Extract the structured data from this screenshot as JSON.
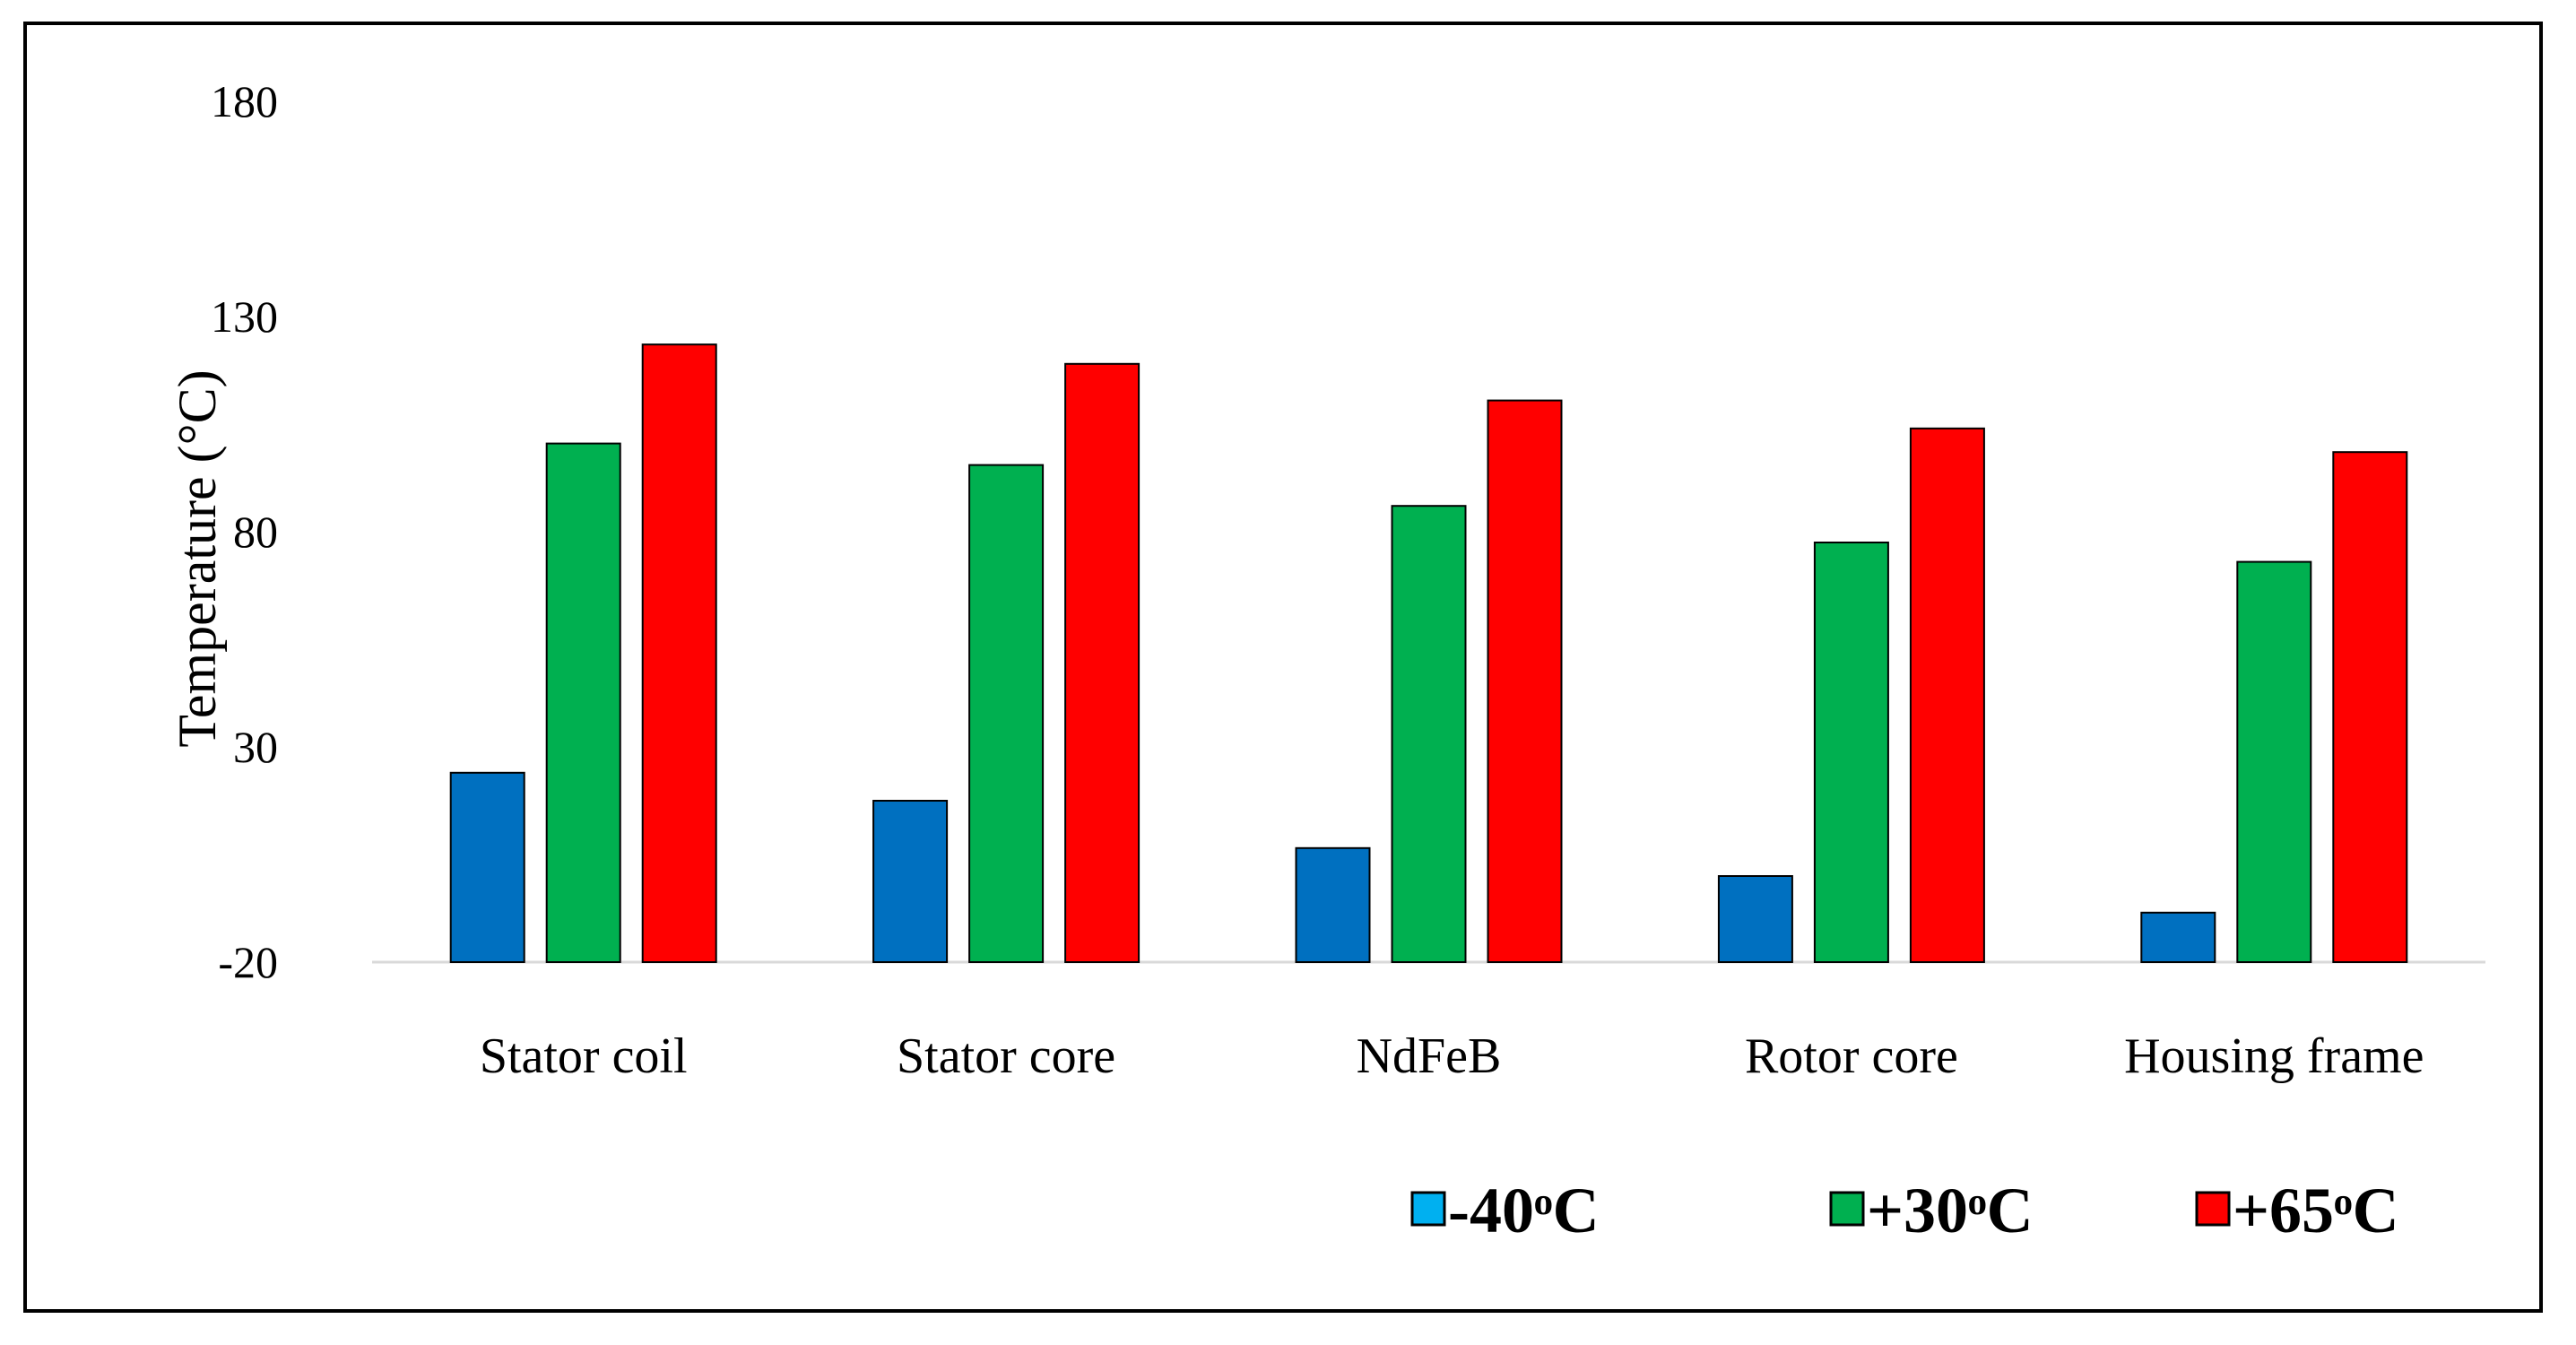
{
  "chart_data": {
    "type": "bar",
    "title": "",
    "xlabel": "",
    "ylabel": "Temperature (°C)",
    "ylim": [
      -20,
      180
    ],
    "yticks": [
      -20,
      30,
      80,
      130,
      180
    ],
    "grid": false,
    "legend_position": "bottom-right",
    "categories": [
      "Stator coil",
      "Stator core",
      "NdFeB",
      "Rotor core",
      "Housing frame"
    ],
    "series": [
      {
        "name": "-40ᵒC",
        "color": "#0070C0",
        "legend_color": "#00B0F0",
        "values": [
          24,
          17.5,
          6.5,
          0,
          -8.5
        ]
      },
      {
        "name": "+30ᵒC",
        "color": "#00B050",
        "legend_color": "#00B050",
        "values": [
          100.5,
          95.5,
          86,
          77.5,
          73
        ]
      },
      {
        "name": "+65ᵒC",
        "color": "#FF0000",
        "legend_color": "#FF0000",
        "values": [
          123.5,
          119,
          110.5,
          104,
          98.5
        ]
      }
    ]
  }
}
